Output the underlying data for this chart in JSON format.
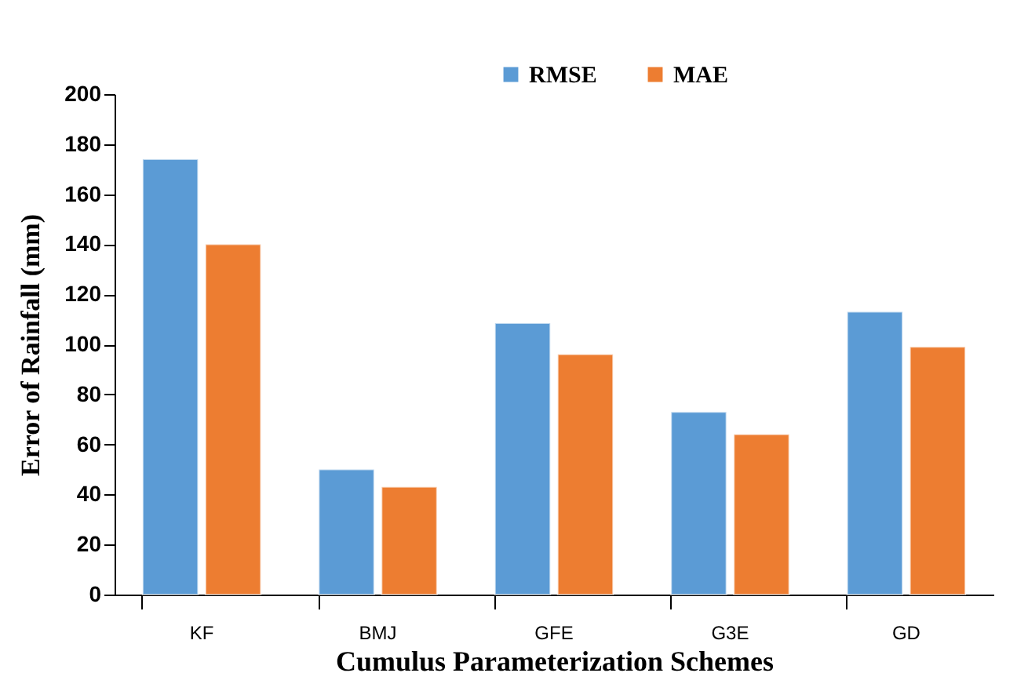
{
  "chart_data": {
    "type": "bar",
    "xlabel": "Cumulus  Parameterization  Schemes",
    "ylabel": "Error of Rainfall (mm)",
    "categories": [
      "KF",
      "BMJ",
      "GFE",
      "G3E",
      "GD"
    ],
    "series": [
      {
        "name": "RMSE",
        "color": "#5b9bd5",
        "values": [
          174,
          50,
          108.5,
          73,
          113
        ]
      },
      {
        "name": "MAE",
        "color": "#ed7d31",
        "values": [
          140,
          43,
          96,
          64,
          99
        ]
      }
    ],
    "ylim": [
      0,
      200
    ],
    "yticks": [
      0,
      20,
      40,
      60,
      80,
      100,
      120,
      140,
      160,
      180,
      200
    ],
    "grid": false,
    "legend": "top"
  }
}
